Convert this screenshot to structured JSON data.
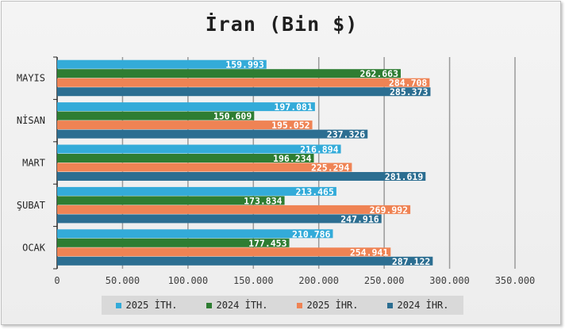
{
  "chart_data": {
    "type": "bar",
    "orientation": "horizontal",
    "title": "İran (Bin $)",
    "categories": [
      "MAYIS",
      "NİSAN",
      "MART",
      "ŞUBAT",
      "OCAK"
    ],
    "series": [
      {
        "name": "2025 İTH.",
        "color": "#33abd9",
        "values": [
          159.993,
          197.081,
          216.894,
          213.465,
          210.786
        ],
        "labels": [
          "159.993",
          "197.081",
          "216.894",
          "213.465",
          "210.786"
        ]
      },
      {
        "name": "2024 İTH.",
        "color": "#2e7d32",
        "values": [
          262.663,
          150.609,
          196.234,
          173.834,
          177.453
        ],
        "labels": [
          "262.663",
          "150.609",
          "196.234",
          "173.834",
          "177.453"
        ]
      },
      {
        "name": "2025 İHR.",
        "color": "#ef8354",
        "values": [
          284.708,
          195.052,
          225.294,
          269.992,
          254.941
        ],
        "labels": [
          "284.708",
          "195.052",
          "225.294",
          "269.992",
          "254.941"
        ]
      },
      {
        "name": "2024 İHR.",
        "color": "#2c6e91",
        "values": [
          285.373,
          237.326,
          281.619,
          247.916,
          287.122
        ],
        "labels": [
          "285.373",
          "237.326",
          "281.619",
          "247.916",
          "287.122"
        ]
      }
    ],
    "xlim": [
      0,
      350
    ],
    "xticks": [
      0,
      50,
      100,
      150,
      200,
      250,
      300,
      350
    ],
    "xtick_labels": [
      "0",
      "50.000",
      "100.000",
      "150.000",
      "200.000",
      "250.000",
      "300.000",
      "350.000"
    ],
    "xlabel": "",
    "ylabel": "",
    "grid": true,
    "legend_position": "bottom"
  }
}
